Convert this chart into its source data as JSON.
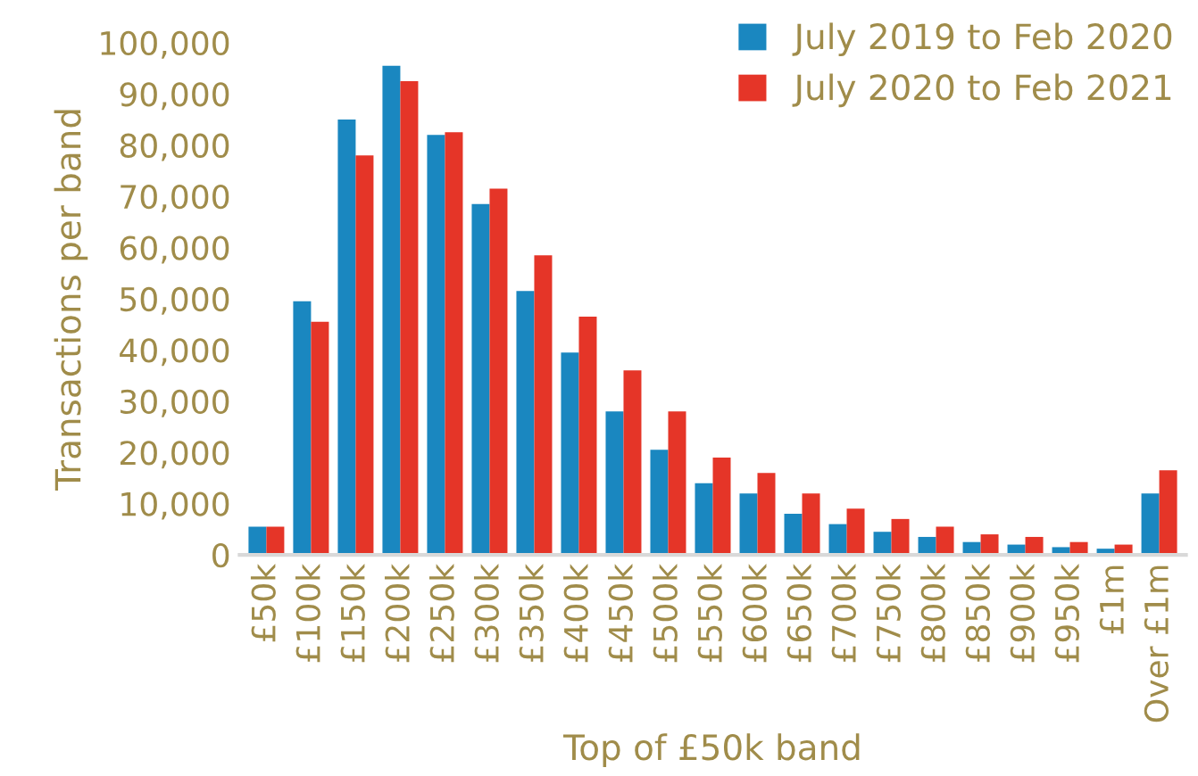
{
  "chart_data": {
    "type": "bar",
    "xlabel": "Top of £50k band",
    "ylabel": "Transactions per band",
    "categories": [
      "£50k",
      "£100k",
      "£150k",
      "£200k",
      "£250k",
      "£300k",
      "£350k",
      "£400k",
      "£450k",
      "£500k",
      "£550k",
      "£600k",
      "£650k",
      "£700k",
      "£750k",
      "£800k",
      "£850k",
      "£900k",
      "£950k",
      "£1m",
      "Over £1m"
    ],
    "series": [
      {
        "name": "July 2019 to Feb 2020",
        "color": "#1a87c0",
        "values": [
          5500,
          49500,
          85000,
          95500,
          82000,
          68500,
          51500,
          39500,
          28000,
          20500,
          14000,
          12000,
          8000,
          6000,
          4500,
          3500,
          2500,
          2000,
          1500,
          1200,
          12000
        ]
      },
      {
        "name": "July 2020 to Feb 2021",
        "color": "#e53528",
        "values": [
          5500,
          45500,
          78000,
          92500,
          82500,
          71500,
          58500,
          46500,
          36000,
          28000,
          19000,
          16000,
          12000,
          9000,
          7000,
          5500,
          4000,
          3500,
          2500,
          2000,
          16500
        ]
      }
    ],
    "ylim": [
      0,
      100000
    ],
    "yticks": [
      {
        "value": 0,
        "label": "0"
      },
      {
        "value": 10000,
        "label": "10,000"
      },
      {
        "value": 20000,
        "label": "20,000"
      },
      {
        "value": 30000,
        "label": "30,000"
      },
      {
        "value": 40000,
        "label": "40,000"
      },
      {
        "value": 50000,
        "label": "50,000"
      },
      {
        "value": 60000,
        "label": "60,000"
      },
      {
        "value": 70000,
        "label": "70,000"
      },
      {
        "value": 80000,
        "label": "80,000"
      },
      {
        "value": 90000,
        "label": "90,000"
      },
      {
        "value": 100000,
        "label": "100,000"
      }
    ],
    "grid": false,
    "legend": "top right"
  }
}
